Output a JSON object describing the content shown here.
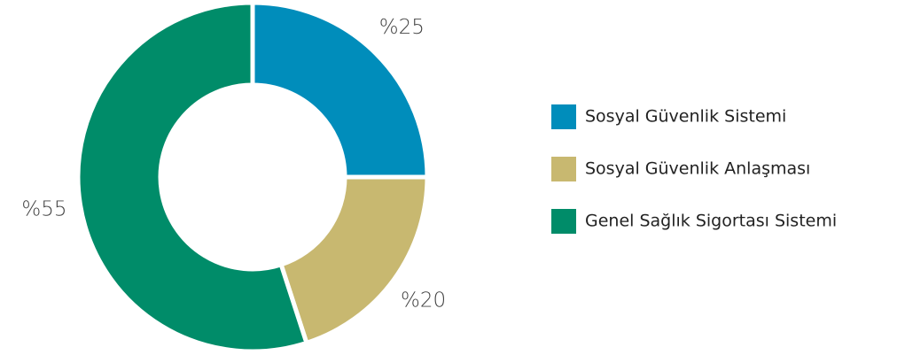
{
  "chart_data": {
    "type": "pie",
    "categories": [
      "Sosyal Güvenlik Sistemi",
      "Sosyal Güvenlik Anlaşması",
      "Genel Sağlık Sigortası Sistemi"
    ],
    "values": [
      25,
      20,
      55
    ],
    "value_labels": [
      "%25",
      "%20",
      "%55"
    ],
    "colors": [
      "#008dbb",
      "#c8b870",
      "#008c69"
    ],
    "donut": true,
    "legend": "right"
  }
}
